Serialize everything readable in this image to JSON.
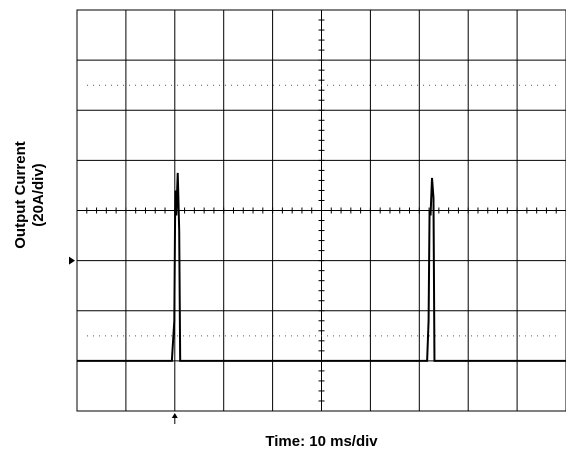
{
  "chart_data": {
    "type": "line",
    "ylabel_line1": "Output Current",
    "ylabel_line2": "(20A/div)",
    "xlabel": "Time: 10 ms/div",
    "x_unit": "ms",
    "y_unit": "A",
    "xlim": [
      0,
      100
    ],
    "ylim": [
      -80,
      80
    ],
    "x_div": 10,
    "y_div": 20,
    "baseline": -60,
    "grid": true,
    "ground_marker_y": -20,
    "trigger_marker_x": 20,
    "series": [
      {
        "x": [
          0,
          19.4,
          19.9,
          20.1,
          20.3,
          20.6,
          20.9,
          21.1,
          21.3,
          71.1,
          71.6,
          71.9,
          72.1,
          72.3,
          72.6,
          72.9,
          73.1,
          100
        ],
        "y": [
          -60,
          -60,
          -44,
          8,
          -2,
          15,
          -8,
          -60,
          -60,
          -60,
          -60,
          -44,
          0,
          -2,
          13,
          5,
          -60,
          -60
        ]
      }
    ]
  }
}
